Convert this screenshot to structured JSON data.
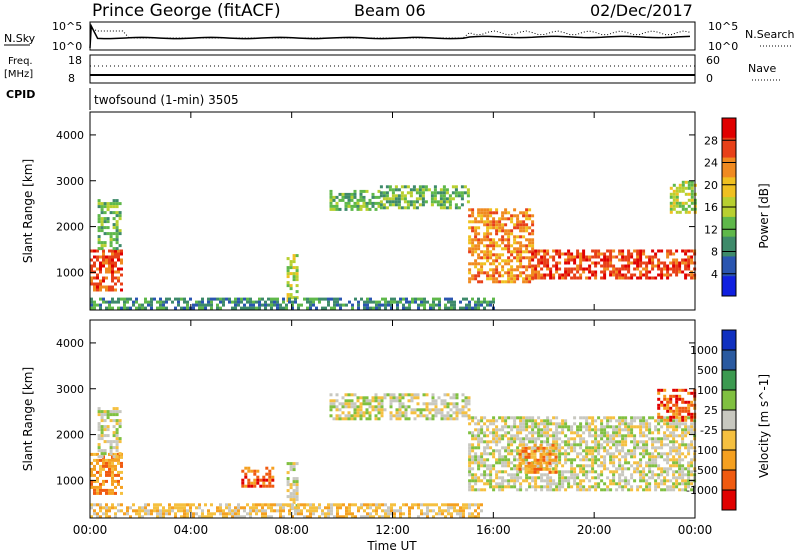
{
  "header": {
    "station": "Prince George (fitACF)",
    "beam": "Beam 06",
    "date": "02/Dec/2017"
  },
  "panel_labels": {
    "nsky": "N.Sky",
    "nsky_ticks": [
      "10^5",
      "10^0"
    ],
    "nsearch": "N.Search",
    "nsearch_ticks": [
      "10^5",
      "10^0"
    ],
    "freq_line1": "Freq.",
    "freq_line2": "[MHz]",
    "freq_ticks": [
      "18",
      "8"
    ],
    "nave": "Nave",
    "nave_ticks": [
      "60",
      "0"
    ],
    "cpid": "CPID",
    "cpid_value": "twofsound (1-min) 3505"
  },
  "colors": {
    "power_scale": [
      "#1020e0",
      "#2a55b0",
      "#3e8a6a",
      "#5fb84a",
      "#b8d030",
      "#f0c020",
      "#f08a20",
      "#e84018",
      "#e00000"
    ],
    "velocity_scale": [
      "#e00000",
      "#f05a10",
      "#f5a020",
      "#f5c040",
      "#c8c8c0",
      "#80c040",
      "#3c9a50",
      "#2a5aa0",
      "#1030c0"
    ]
  },
  "chart_data": [
    {
      "type": "heatmap",
      "name": "power",
      "xlabel": "",
      "ylabel": "Slant Range [km]",
      "ylim": [
        180,
        4500
      ],
      "yticks": [
        1000,
        2000,
        3000,
        4000
      ],
      "colorbar_label": "Power [dB]",
      "colorbar_ticks": [
        "28",
        "24",
        "20",
        "16",
        "12",
        "8",
        "4"
      ],
      "regions": [
        {
          "x": [
            0.0,
            1.3
          ],
          "y": [
            600,
            1500
          ],
          "level": 7
        },
        {
          "x": [
            0.3,
            1.2
          ],
          "y": [
            1500,
            2600
          ],
          "level": 3
        },
        {
          "x": [
            7.8,
            8.2
          ],
          "y": [
            400,
            1400
          ],
          "level": 4
        },
        {
          "x": [
            9.5,
            11.5
          ],
          "y": [
            2350,
            2800
          ],
          "level": 3
        },
        {
          "x": [
            11.5,
            15.0
          ],
          "y": [
            2400,
            2900
          ],
          "level": 3
        },
        {
          "x": [
            15.0,
            17.5
          ],
          "y": [
            800,
            2400
          ],
          "level": 6
        },
        {
          "x": [
            17.5,
            24.0
          ],
          "y": [
            850,
            1500
          ],
          "level": 7
        },
        {
          "x": [
            23.0,
            24.0
          ],
          "y": [
            2300,
            3000
          ],
          "level": 4
        },
        {
          "x": [
            0.0,
            16.0
          ],
          "y": [
            200,
            450
          ],
          "level": 2
        }
      ]
    },
    {
      "type": "heatmap",
      "name": "velocity",
      "xlabel": "Time UT",
      "ylabel": "Slant Range [km]",
      "ylim": [
        180,
        4500
      ],
      "yticks": [
        1000,
        2000,
        3000,
        4000
      ],
      "xticks": [
        "00:00",
        "04:00",
        "08:00",
        "12:00",
        "16:00",
        "20:00",
        "00:00"
      ],
      "colorbar_label": "Velocity [m s^-1]",
      "colorbar_ticks": [
        "1000",
        "500",
        "100",
        "25",
        "-25",
        "-100",
        "-500",
        "-1000"
      ],
      "regions": [
        {
          "x": [
            0.0,
            1.3
          ],
          "y": [
            700,
            1600
          ],
          "level": 2
        },
        {
          "x": [
            0.3,
            1.2
          ],
          "y": [
            1500,
            2600
          ],
          "level": 4
        },
        {
          "x": [
            6.0,
            7.2
          ],
          "y": [
            900,
            1300
          ],
          "level": 1
        },
        {
          "x": [
            7.8,
            8.2
          ],
          "y": [
            400,
            1400
          ],
          "level": 4
        },
        {
          "x": [
            9.5,
            15.0
          ],
          "y": [
            2350,
            2900
          ],
          "level": 4
        },
        {
          "x": [
            15.0,
            24.0
          ],
          "y": [
            800,
            2400
          ],
          "level": 4
        },
        {
          "x": [
            17.0,
            18.5
          ],
          "y": [
            1200,
            1800
          ],
          "level": 2
        },
        {
          "x": [
            22.5,
            24.0
          ],
          "y": [
            2300,
            3000
          ],
          "level": 1
        },
        {
          "x": [
            0.0,
            15.5
          ],
          "y": [
            200,
            500
          ],
          "level": 3
        }
      ]
    }
  ]
}
